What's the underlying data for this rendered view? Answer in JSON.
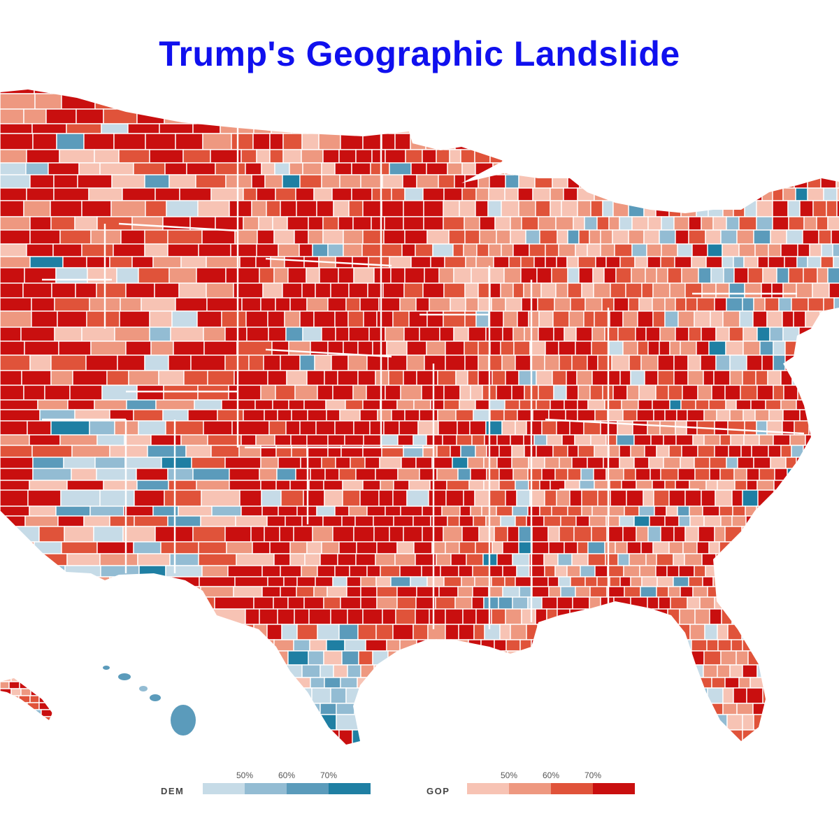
{
  "title": "Trump's Geographic Landslide",
  "colors": {
    "title": "#1010ee",
    "background": "#ffffff",
    "border": "#ffffff"
  },
  "map": {
    "regions": [
      "contiguous-us",
      "alaska",
      "hawaii"
    ],
    "class_breaks_percent": [
      50,
      60,
      70
    ],
    "palette": {
      "gop": [
        "#f7c3b4",
        "#ee9880",
        "#e0533a",
        "#c90f0f"
      ],
      "dem": [
        "#c6dbe7",
        "#93bcd3",
        "#5b9bbb",
        "#1f7fa3"
      ]
    }
  },
  "legend": {
    "dem": {
      "label": "DEM",
      "ticks": [
        "50%",
        "60%",
        "70%"
      ],
      "colors": [
        "#c6dbe7",
        "#93bcd3",
        "#5b9bbb",
        "#1f7fa3"
      ]
    },
    "gop": {
      "label": "GOP",
      "ticks": [
        "50%",
        "60%",
        "70%"
      ],
      "colors": [
        "#f7c3b4",
        "#ee9880",
        "#e0533a",
        "#c90f0f"
      ]
    }
  }
}
